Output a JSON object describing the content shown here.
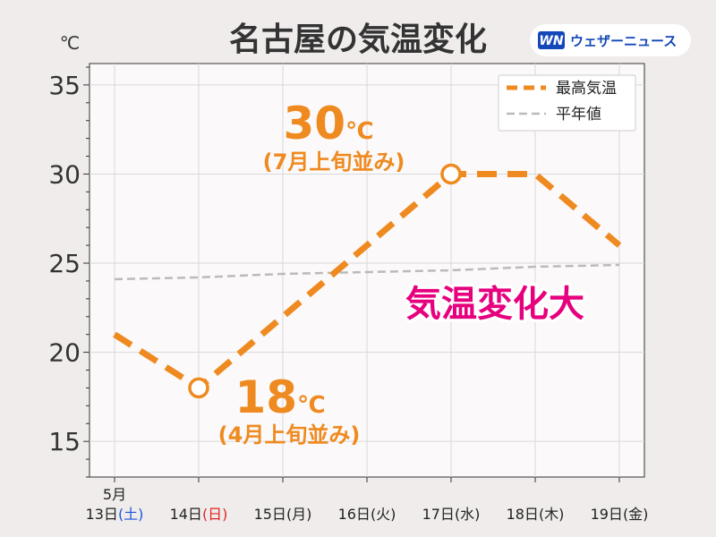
{
  "title": "名古屋の気温変化",
  "logo": {
    "mark": "WN",
    "text": "ウェザーニュース"
  },
  "unit": "℃",
  "month_label": "5月",
  "badge": "気温変化大",
  "annotations": [
    {
      "value_text": "30",
      "unit_text": "℃",
      "note": "(7月上旬並み)"
    },
    {
      "value_text": "18",
      "unit_text": "℃",
      "note": "(4月上旬並み)"
    }
  ],
  "legend": [
    {
      "label": "最高気温",
      "color": "#ee8a1f",
      "style": "dashed-thick"
    },
    {
      "label": "平年値",
      "color": "#bbbbbb",
      "style": "dashed-thin"
    }
  ],
  "colors": {
    "accent": "#ee8a1f",
    "badge": "#e6007e",
    "saturday": "#1a56db",
    "sunday": "#e02424",
    "logo_blue": "#1447b8"
  },
  "chart_data": {
    "type": "line",
    "categories": [
      "13日",
      "14日",
      "15日",
      "16日",
      "17日",
      "18日",
      "19日"
    ],
    "weekdays": [
      "(土)",
      "(日)",
      "(月)",
      "(火)",
      "(水)",
      "(木)",
      "(金)"
    ],
    "weekday_colors": [
      "#1a56db",
      "#e02424",
      "#222222",
      "#222222",
      "#222222",
      "#222222",
      "#222222"
    ],
    "series": [
      {
        "name": "最高気温",
        "values": [
          21,
          18,
          22,
          26,
          30,
          30,
          26
        ],
        "markers": [
          false,
          true,
          false,
          false,
          true,
          false,
          false
        ]
      },
      {
        "name": "平年値",
        "values": [
          24.1,
          24.2,
          24.4,
          24.5,
          24.6,
          24.8,
          24.9
        ]
      }
    ],
    "ylim": [
      13,
      36.2
    ],
    "yticks": [
      15,
      20,
      25,
      30,
      35
    ],
    "grid": true,
    "legend_position": "top-right"
  }
}
